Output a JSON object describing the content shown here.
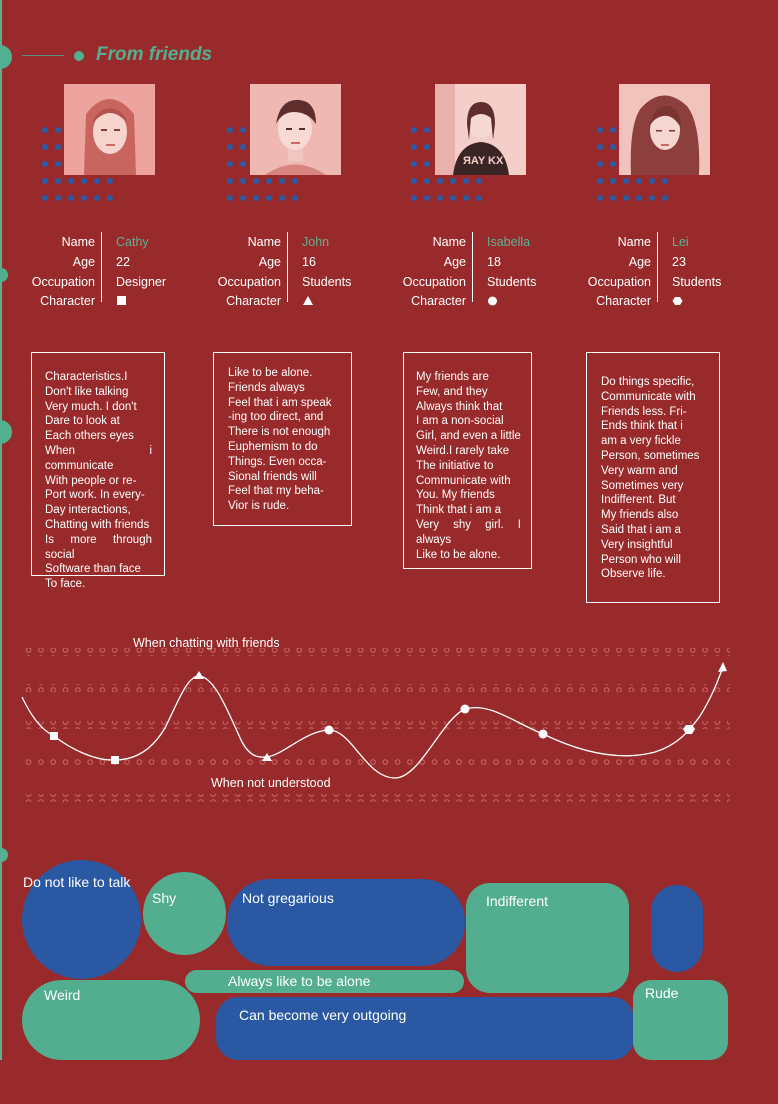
{
  "header": {
    "title": "From friends"
  },
  "profile_labels": {
    "name": "Name",
    "age": "Age",
    "occupation": "Occupation",
    "character": "Character"
  },
  "friends": [
    {
      "name": "Cathy",
      "age": "22",
      "occupation": "Designer",
      "character_shape": "square",
      "description": [
        "Characteristics.I",
        "Don't like talking",
        "Very much. I don't",
        "Dare to look at",
        "Each others eyes",
        "When i communicate",
        "With people or re-",
        "Port work. In every-",
        "Day interactions,",
        "Chatting with friends",
        "Is more through social",
        "Software than face",
        "To face."
      ]
    },
    {
      "name": "John",
      "age": "16",
      "occupation": "Students",
      "character_shape": "triangle",
      "description": [
        "Like to be alone.",
        "Friends always",
        "Feel that i am speak",
        "-ing too direct, and",
        "There is not enough",
        "Euphemism to do",
        "Things. Even occa-",
        "Sional friends will",
        "Feel that my beha-",
        "Vior is rude."
      ]
    },
    {
      "name": "Isabella",
      "age": "18",
      "occupation": "Students",
      "character_shape": "circle",
      "description": [
        "My friends are",
        "Few, and they",
        "Always think that",
        "I am a non-social",
        "Girl, and even a little",
        "Weird.I rarely take",
        "The initiative to",
        "Communicate with",
        "You. My friends",
        "Think that i am a",
        "Very shy girl. I always",
        "Like to be alone."
      ]
    },
    {
      "name": "Lei",
      "age": "23",
      "occupation": "Students",
      "character_shape": "hexagon",
      "description": [
        "Do things specific,",
        "Communicate with",
        "Friends less. Fri-",
        "Ends think that i",
        "am a very fickle",
        "Person, sometimes",
        "Very warm and",
        "Sometimes very",
        "Indifferent. But",
        "My friends also",
        "Said that i am a",
        "Very insightful",
        "Person who will",
        "Observe life."
      ]
    }
  ],
  "chart": {
    "label_top": "When chatting with friends",
    "label_bottom": "When not understood"
  },
  "traits": {
    "do_not_like_to_talk": "Do not like to talk",
    "shy": "Shy",
    "not_gregarious": "Not gregarious",
    "indifferent": "Indifferent",
    "always_alone": "Always like to be alone",
    "weird": "Weird",
    "can_become_outgoing": "Can become very outgoing",
    "rude": "Rude"
  },
  "colors": {
    "background": "#992a2b",
    "accent_green": "#52b090",
    "accent_blue": "#2a58a3"
  }
}
